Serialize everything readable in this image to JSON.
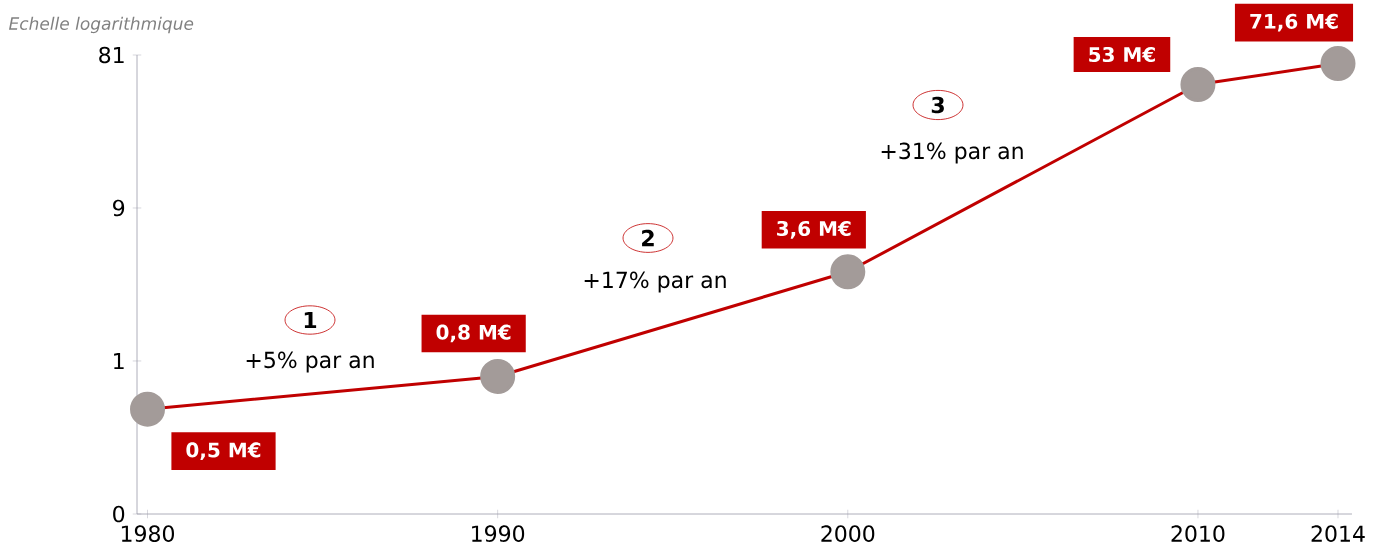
{
  "chart_data": {
    "type": "line",
    "ylabel": "Echelle logarithmique",
    "x": [
      1980,
      1990,
      2000,
      2010,
      2014
    ],
    "values": [
      0.5,
      0.8,
      3.6,
      53,
      71.6
    ],
    "value_labels": [
      "0,5 M€",
      "0,8 M€",
      "3,6 M€",
      "53 M€",
      "71,6 M€"
    ],
    "color": "#c00000",
    "marker": "circle",
    "log": "y",
    "xlim": [
      1979.7,
      2014.4
    ],
    "ylim": [
      0.111,
      81
    ],
    "xticks": [
      1980,
      1990,
      2000,
      2010,
      2014
    ],
    "yticks": [
      {
        "value": 0.111,
        "label": "0"
      },
      1,
      9,
      81
    ],
    "annotations": [
      "1",
      "+5% par an",
      "2",
      "+17% par an",
      "3",
      "+31% par an"
    ]
  }
}
